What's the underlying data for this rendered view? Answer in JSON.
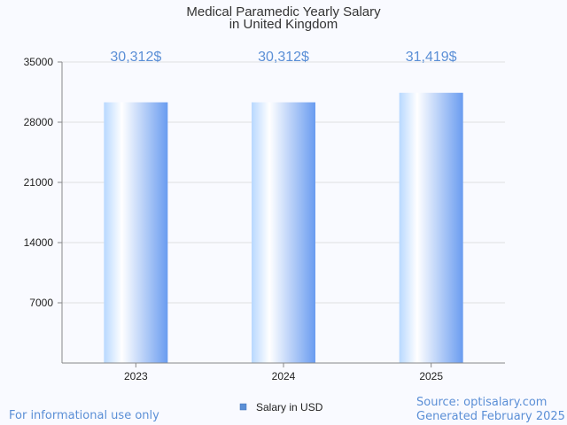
{
  "chart_data": {
    "type": "bar",
    "title_lines": [
      "Medical Paramedic Yearly Salary",
      "in United Kingdom"
    ],
    "categories": [
      "2023",
      "2024",
      "2025"
    ],
    "series": [
      {
        "name": "Salary in USD",
        "values": [
          30312,
          30312,
          31419
        ]
      }
    ],
    "data_labels": [
      "30,312$",
      "30,312$",
      "31,419$"
    ],
    "yticks": [
      "35000",
      "28000",
      "21000",
      "14000",
      "7000"
    ],
    "ytick_values": [
      35000,
      28000,
      21000,
      14000,
      7000
    ],
    "ylim": [
      0,
      35000
    ],
    "grid": true,
    "legend_position": "bottom-center",
    "colors": {
      "bar_light": "#ffffff",
      "bar_mid": "#b8d8ff",
      "bar_dark": "#6a9cf0",
      "label": "#5b8fd6",
      "legend_swatch": "#5b8fd6",
      "grid": "#e0e0e0",
      "axis": "#888888"
    }
  },
  "footer": {
    "disclaimer": "For informational use only",
    "source": "Source: optisalary.com",
    "generated": "Generated February 2025"
  }
}
